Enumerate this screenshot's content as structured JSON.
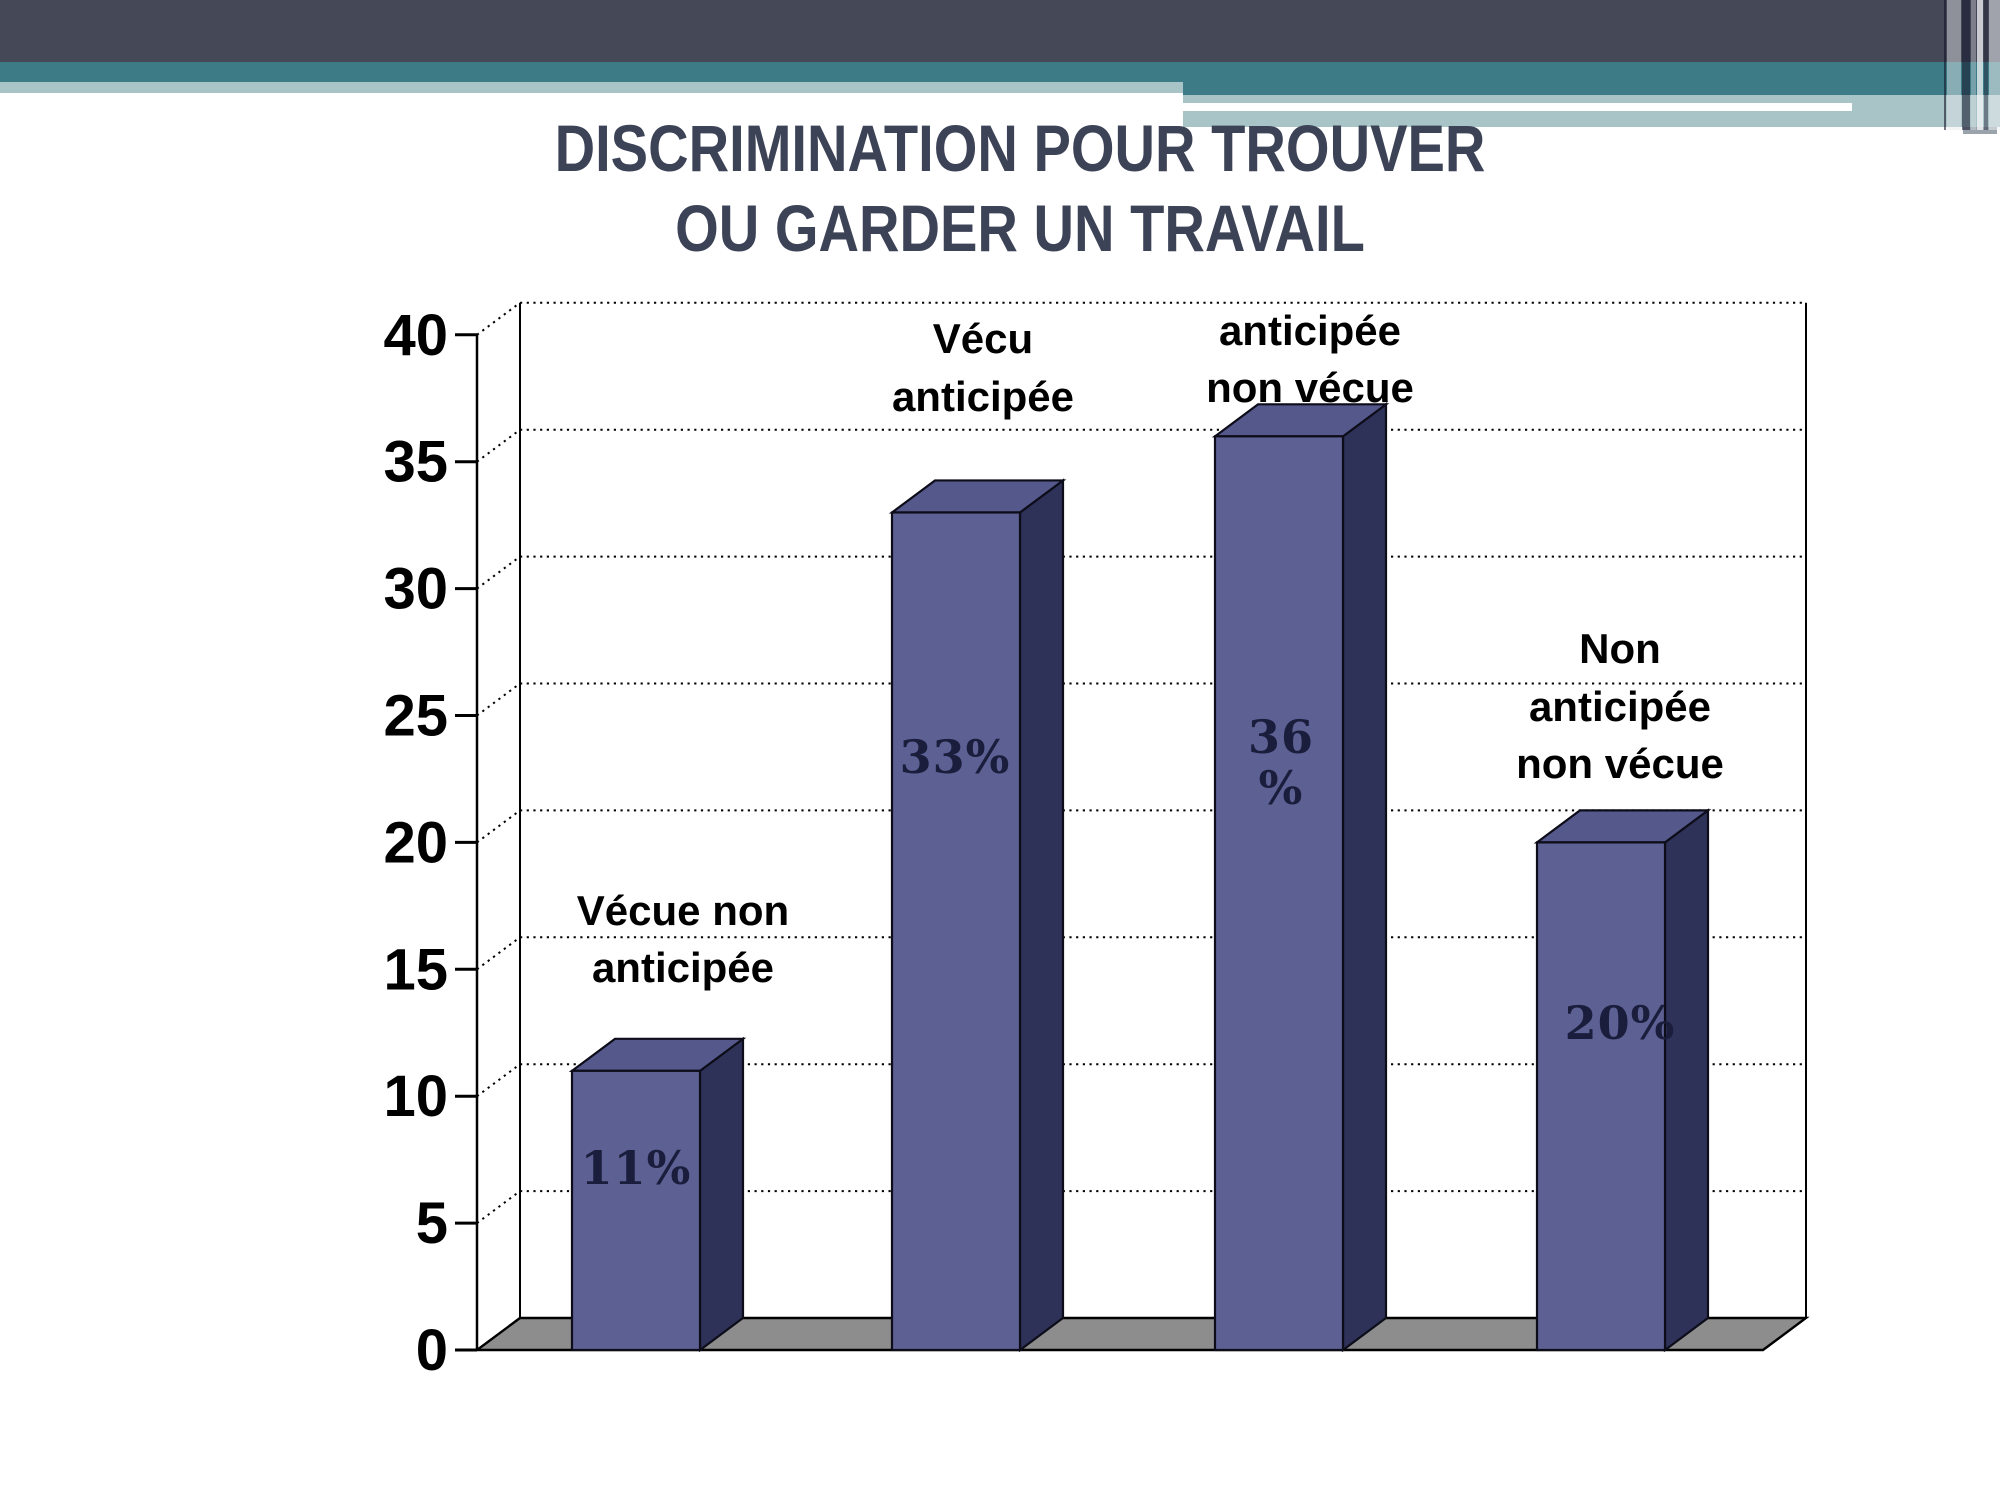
{
  "title": {
    "line1": "DISCRIMINATION POUR TROUVER",
    "line2": "OU GARDER UN TRAVAIL"
  },
  "chart_data": {
    "type": "bar",
    "style": "3d-column",
    "title": "DISCRIMINATION POUR TROUVER OU GARDER UN TRAVAIL",
    "categories": [
      "Vécue non anticipée",
      "Vécu anticipée",
      "anticipée non vécue",
      "Non anticipée non vécue"
    ],
    "categories_lines": [
      [
        "Vécue non",
        "anticipée"
      ],
      [
        "Vécu",
        "anticipée"
      ],
      [
        "anticipée",
        "non vécue"
      ],
      [
        "Non",
        "anticipée",
        "non vécue"
      ]
    ],
    "values": [
      11,
      33,
      36,
      20
    ],
    "value_labels_lines": [
      [
        "11%"
      ],
      [
        "33%"
      ],
      [
        "36",
        "%"
      ],
      [
        "20%"
      ]
    ],
    "unit": "%",
    "ylim": [
      0,
      40
    ],
    "yticks": [
      0,
      5,
      10,
      15,
      20,
      25,
      30,
      35,
      40
    ],
    "grid": "dotted-horizontal",
    "legend": "none"
  },
  "colors": {
    "background": "#ffffff",
    "header_navy": "#454857",
    "header_teal": "#3d7c86",
    "header_sage": "#a9c4c6",
    "title_text": "#3d4357",
    "bar_front": "#5c6093",
    "bar_top": "#54588b",
    "bar_side": "#2e3259",
    "bar_outline": "#0d0d1a",
    "value_label": "#1a1e3c",
    "category_label": "#000000",
    "floor": "#8d8d8d",
    "axis": "#000000"
  }
}
